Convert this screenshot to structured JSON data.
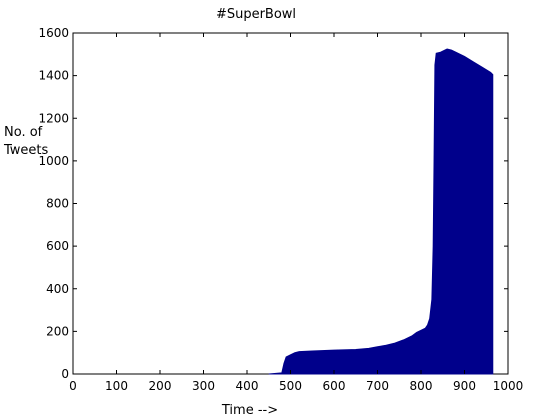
{
  "chart_data": {
    "type": "area",
    "title": "#SuperBowl",
    "xlabel": "Time -->",
    "ylabel": [
      "No. of",
      "Tweets"
    ],
    "xlim": [
      0,
      1000
    ],
    "ylim": [
      0,
      1600
    ],
    "xticks": [
      0,
      100,
      200,
      300,
      400,
      500,
      600,
      700,
      800,
      900,
      1000
    ],
    "yticks": [
      0,
      200,
      400,
      600,
      800,
      1000,
      1200,
      1400,
      1600
    ],
    "grid": false,
    "fill_color": "#00008b",
    "series": [
      {
        "x": [
          450,
          480,
          485,
          490,
          500,
          510,
          520,
          550,
          600,
          650,
          680,
          700,
          720,
          740,
          760,
          780,
          790,
          800,
          810,
          815,
          820,
          825,
          828,
          830,
          832,
          835,
          845,
          855,
          860,
          870,
          880,
          900,
          920,
          940,
          960,
          965
        ],
        "y": [
          0,
          5,
          50,
          80,
          90,
          100,
          105,
          108,
          112,
          115,
          120,
          128,
          135,
          145,
          160,
          180,
          195,
          205,
          215,
          230,
          260,
          350,
          600,
          1000,
          1450,
          1505,
          1510,
          1520,
          1525,
          1520,
          1510,
          1490,
          1465,
          1440,
          1415,
          1405
        ]
      }
    ]
  }
}
